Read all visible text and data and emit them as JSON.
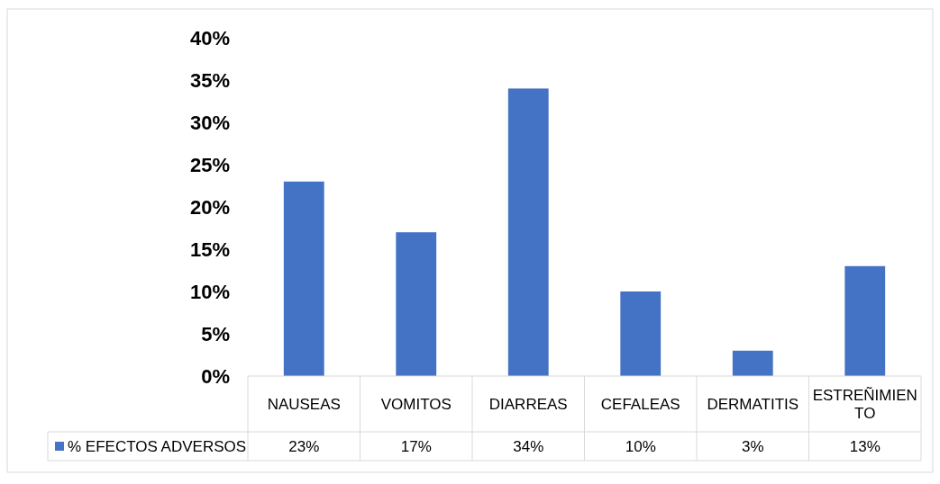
{
  "chart_data": {
    "type": "bar",
    "categories": [
      "NAUSEAS",
      "VOMITOS",
      "DIARREAS",
      "CEFALEAS",
      "DERMATITIS",
      "ESTREÑIMIENTO"
    ],
    "series": [
      {
        "name": "% EFECTOS ADVERSOS",
        "color": "#4472c4",
        "values": [
          23,
          17,
          34,
          10,
          3,
          13
        ],
        "value_labels": [
          "23%",
          "17%",
          "34%",
          "10%",
          "3%",
          "13%"
        ]
      }
    ],
    "ylim": [
      0,
      40
    ],
    "yticks": [
      {
        "value": 0,
        "label": "0%"
      },
      {
        "value": 5,
        "label": "5%"
      },
      {
        "value": 10,
        "label": "10%"
      },
      {
        "value": 15,
        "label": "15%"
      },
      {
        "value": 20,
        "label": "20%"
      },
      {
        "value": 25,
        "label": "25%"
      },
      {
        "value": 30,
        "label": "30%"
      },
      {
        "value": 35,
        "label": "35%"
      },
      {
        "value": 40,
        "label": "40%"
      }
    ],
    "grid": false,
    "legend": "bottom"
  }
}
